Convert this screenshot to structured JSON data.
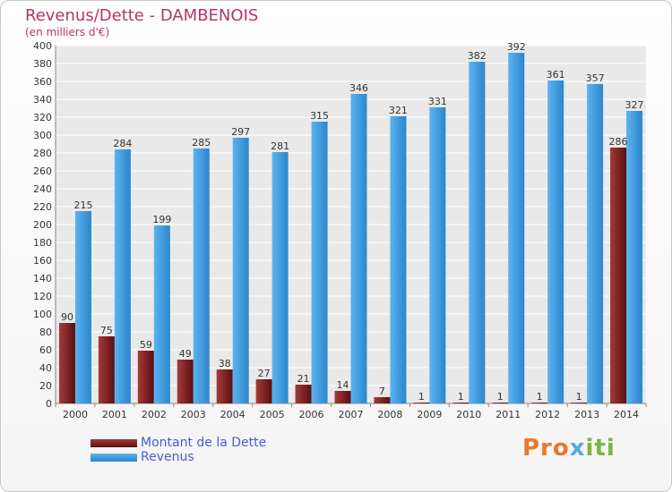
{
  "title": "Revenus/Dette - DAMBENOIS",
  "subtitle": "(en milliers d'€)",
  "colors": {
    "debt": "#7a1f1f",
    "revenue": "#3b9be0",
    "title": "#b7336b",
    "legend_text": "#4a5bd4"
  },
  "chart_data": {
    "type": "bar",
    "categories": [
      "2000",
      "2001",
      "2002",
      "2003",
      "2004",
      "2005",
      "2006",
      "2007",
      "2008",
      "2009",
      "2010",
      "2011",
      "2012",
      "2013",
      "2014"
    ],
    "series": [
      {
        "name": "Montant de la Dette",
        "values": [
          90,
          75,
          59,
          49,
          38,
          27,
          21,
          14,
          7,
          1,
          1,
          1,
          1,
          1,
          286
        ]
      },
      {
        "name": "Revenus",
        "values": [
          215,
          284,
          199,
          285,
          297,
          281,
          315,
          346,
          321,
          331,
          382,
          392,
          361,
          357,
          327
        ]
      }
    ],
    "ylim": [
      0,
      400
    ],
    "ytick_step": 20,
    "grid": true,
    "legend_position": "bottom-left"
  },
  "legend": {
    "items": [
      "Montant de la Dette",
      "Revenus"
    ]
  },
  "logo": {
    "part1": "Pro",
    "part2": "x",
    "part3": "iti"
  }
}
